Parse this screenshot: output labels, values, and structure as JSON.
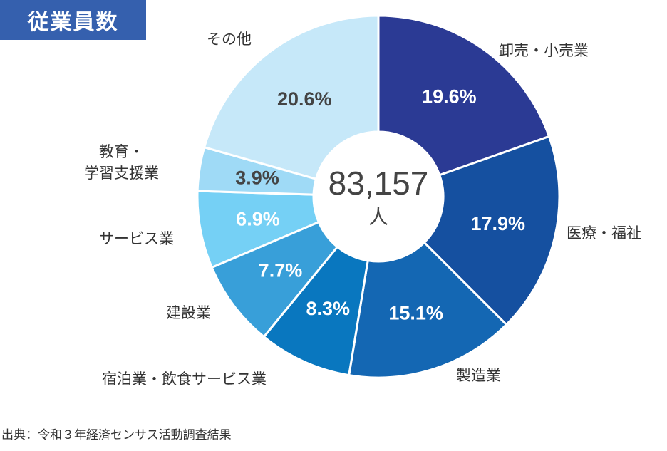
{
  "chart_data": {
    "type": "pie",
    "variant": "donut",
    "title": "従業員数",
    "center_value": "83,157",
    "center_unit": "人",
    "start": "top",
    "direction": "clockwise",
    "slices": [
      {
        "label": "卸売・小売業",
        "value": 19.6,
        "display": "19.6%",
        "color": "#2b3a94",
        "text_color": "#ffffff"
      },
      {
        "label": "医療・福祉",
        "value": 17.9,
        "display": "17.9%",
        "color": "#1550a0",
        "text_color": "#ffffff"
      },
      {
        "label": "製造業",
        "value": 15.1,
        "display": "15.1%",
        "color": "#1467b3",
        "text_color": "#ffffff"
      },
      {
        "label": "宿泊業・飲食サービス業",
        "value": 8.3,
        "display": "8.3%",
        "color": "#0977bf",
        "text_color": "#ffffff"
      },
      {
        "label": "建設業",
        "value": 7.7,
        "display": "7.7%",
        "color": "#389fd9",
        "text_color": "#ffffff"
      },
      {
        "label": "サービス業",
        "value": 6.9,
        "display": "6.9%",
        "color": "#75d0f5",
        "text_color": "#ffffff"
      },
      {
        "label": "教育・\n学習支援業",
        "value": 3.9,
        "display": "3.9%",
        "color": "#9fdaf6",
        "text_color": "#444444"
      },
      {
        "label": "その他",
        "value": 20.6,
        "display": "20.6%",
        "color": "#c6e8f9",
        "text_color": "#444444"
      }
    ]
  },
  "source": "出典：令和３年経済センサス活動調査結果",
  "colors": {
    "title_bg": "#3560ae"
  }
}
